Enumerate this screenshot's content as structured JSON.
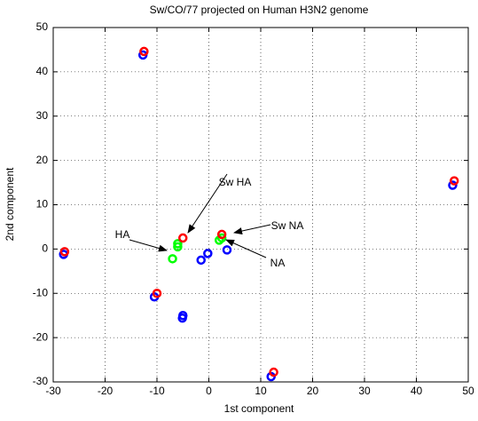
{
  "chart_data": {
    "type": "scatter",
    "title": "Sw/CO/77 projected on Human H3N2 genome",
    "x_label": "1st component",
    "y_label": "2nd component",
    "xlim": [
      -30,
      50
    ],
    "xticks": [
      -30,
      -20,
      -10,
      0,
      10,
      20,
      30,
      40,
      50
    ],
    "ylim": [
      -30,
      50
    ],
    "yticks": [
      -30,
      -20,
      -10,
      0,
      10,
      20,
      30,
      40,
      50
    ],
    "grid": true,
    "series": [
      {
        "color": "#0000ff",
        "x": [
          -12.7,
          -28,
          -10.5,
          -5,
          -5.1,
          -1.5,
          -0.2,
          3.5,
          12,
          47
        ],
        "values": [
          43.8,
          -1.2,
          -10.8,
          -15,
          -15.6,
          -2.5,
          -1,
          -0.2,
          -28.8,
          14.4
        ]
      },
      {
        "color": "#00ff00",
        "x": [
          -7,
          -6,
          -6,
          2,
          2.5
        ],
        "values": [
          -2.2,
          0.5,
          1.2,
          2,
          2.5
        ]
      },
      {
        "color": "#ff0000",
        "x": [
          -12.5,
          -27.8,
          -10,
          -5,
          2.5,
          12.5,
          47.3
        ],
        "values": [
          44.6,
          -0.6,
          -10,
          2.5,
          3.3,
          -27.8,
          15.4
        ]
      }
    ],
    "annotations": [
      "Sw HA",
      "HA",
      "Sw NA",
      "NA"
    ]
  }
}
